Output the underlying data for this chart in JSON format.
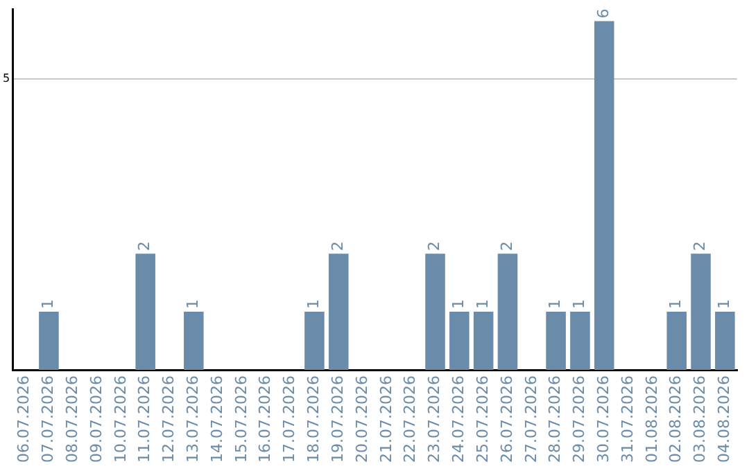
{
  "chart_data": {
    "type": "bar",
    "categories": [
      "06.07.2026",
      "07.07.2026",
      "08.07.2026",
      "09.07.2026",
      "10.07.2026",
      "11.07.2026",
      "12.07.2026",
      "13.07.2026",
      "14.07.2026",
      "15.07.2026",
      "16.07.2026",
      "17.07.2026",
      "18.07.2026",
      "19.07.2026",
      "20.07.2026",
      "21.07.2026",
      "22.07.2026",
      "23.07.2026",
      "24.07.2026",
      "25.07.2026",
      "26.07.2026",
      "27.07.2026",
      "28.07.2026",
      "29.07.2026",
      "30.07.2026",
      "31.07.2026",
      "01.08.2026",
      "02.08.2026",
      "03.08.2026",
      "04.08.2026"
    ],
    "values": [
      0,
      1,
      0,
      0,
      0,
      2,
      0,
      1,
      0,
      0,
      0,
      0,
      1,
      2,
      0,
      0,
      0,
      2,
      1,
      1,
      2,
      0,
      1,
      1,
      6,
      0,
      0,
      1,
      2,
      1
    ],
    "value_labels": [
      null,
      "1",
      null,
      null,
      null,
      "2",
      null,
      "1",
      null,
      null,
      null,
      null,
      "1",
      "2",
      null,
      null,
      null,
      "2",
      "1",
      "1",
      "2",
      null,
      "1",
      "1",
      "6",
      null,
      null,
      "1",
      "2",
      "1"
    ],
    "color": "#6a8caa",
    "ylim": [
      0,
      6.2
    ],
    "yticks": [
      5
    ],
    "grid": "y",
    "legend": false
  }
}
